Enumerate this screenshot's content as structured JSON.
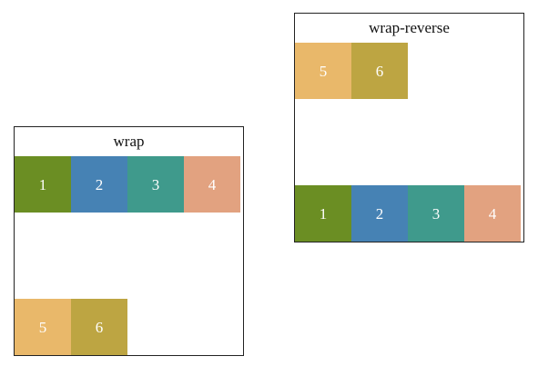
{
  "wrap_demo": {
    "title": "wrap",
    "items": [
      "1",
      "2",
      "3",
      "4",
      "5",
      "6"
    ]
  },
  "wrap_reverse_demo": {
    "title": "wrap-reverse",
    "items": [
      "1",
      "2",
      "3",
      "4",
      "5",
      "6"
    ]
  },
  "colors": {
    "item_1": "#6b8e23",
    "item_2": "#4682b4",
    "item_3": "#3f9a8c",
    "item_4": "#e2a280",
    "item_5": "#e9b86a",
    "item_6": "#bda542",
    "item_text": "#ffffff",
    "border": "#222222"
  }
}
